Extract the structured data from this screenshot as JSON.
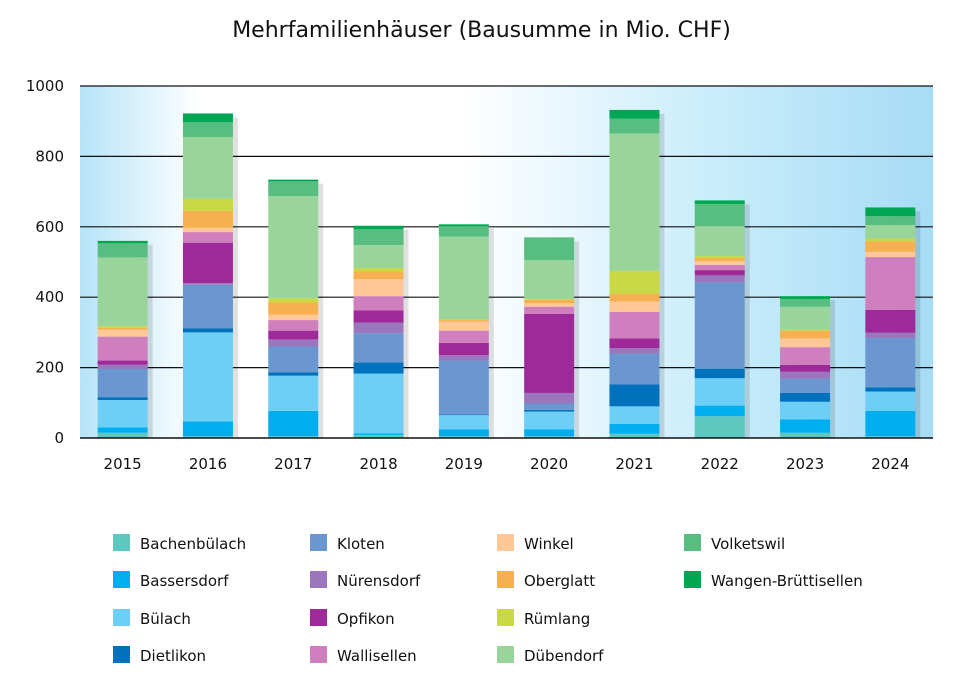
{
  "chart_data": {
    "type": "bar",
    "stacked": true,
    "title": "Mehrfamilienhäuser (Bausumme in Mio. CHF)",
    "xlabel": "",
    "ylabel": "",
    "ylim": [
      0,
      1000
    ],
    "yticks": [
      0,
      200,
      400,
      600,
      800,
      1000
    ],
    "grid": true,
    "legend_position": "bottom",
    "categories": [
      "2015",
      "2016",
      "2017",
      "2018",
      "2019",
      "2020",
      "2021",
      "2022",
      "2023",
      "2024"
    ],
    "series": [
      {
        "name": "Bachenbülach",
        "color": "#5cc8c0",
        "values": [
          15,
          5,
          5,
          8,
          5,
          5,
          12,
          62,
          15,
          5
        ]
      },
      {
        "name": "Bassersdorf",
        "color": "#00aeef",
        "values": [
          15,
          42,
          72,
          5,
          20,
          20,
          28,
          30,
          38,
          72
        ]
      },
      {
        "name": "Bülach",
        "color": "#6dcff6",
        "values": [
          78,
          253,
          100,
          170,
          40,
          50,
          50,
          78,
          50,
          55
        ]
      },
      {
        "name": "Dietlikon",
        "color": "#0071bc",
        "values": [
          8,
          12,
          10,
          32,
          2,
          5,
          62,
          27,
          25,
          12
        ]
      },
      {
        "name": "Kloten",
        "color": "#6a97d0",
        "values": [
          80,
          123,
          73,
          83,
          153,
          18,
          88,
          245,
          40,
          140
        ]
      },
      {
        "name": "Nürensdorf",
        "color": "#9b76bd",
        "values": [
          12,
          5,
          20,
          30,
          15,
          30,
          15,
          20,
          20,
          15
        ]
      },
      {
        "name": "Opfikon",
        "color": "#9e2a9a",
        "values": [
          12,
          115,
          25,
          35,
          35,
          225,
          28,
          15,
          20,
          65
        ]
      },
      {
        "name": "Wallisellen",
        "color": "#d07fbe",
        "values": [
          68,
          30,
          30,
          40,
          35,
          20,
          75,
          15,
          50,
          150
        ]
      },
      {
        "name": "Winkel",
        "color": "#ffc896",
        "values": [
          20,
          12,
          15,
          48,
          25,
          10,
          30,
          10,
          25,
          15
        ]
      },
      {
        "name": "Oberglatt",
        "color": "#f7b04f",
        "values": [
          5,
          48,
          35,
          22,
          5,
          10,
          22,
          10,
          22,
          30
        ]
      },
      {
        "name": "Rümlang",
        "color": "#c8d944",
        "values": [
          5,
          35,
          12,
          10,
          2,
          2,
          65,
          5,
          3,
          8
        ]
      },
      {
        "name": "Dübendorf",
        "color": "#99d59a",
        "values": [
          195,
          175,
          290,
          65,
          235,
          110,
          390,
          85,
          65,
          38
        ]
      },
      {
        "name": "Volketswil",
        "color": "#58be80",
        "values": [
          40,
          42,
          42,
          45,
          30,
          65,
          42,
          63,
          22,
          25
        ]
      },
      {
        "name": "Wangen-Brüttisellen",
        "color": "#00a651",
        "values": [
          7,
          25,
          5,
          10,
          5,
          0,
          25,
          10,
          8,
          25
        ]
      }
    ]
  }
}
